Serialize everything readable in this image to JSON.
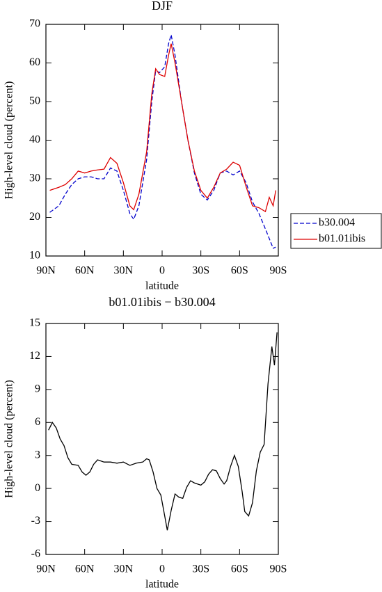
{
  "chart_data": [
    {
      "type": "line",
      "title": "DJF",
      "xlabel": "latitude",
      "ylabel": "High-level cloud (percent)",
      "x": [
        87,
        80,
        75,
        70,
        65,
        60,
        55,
        50,
        45,
        40,
        35,
        30,
        25,
        22,
        18,
        12,
        8,
        5,
        2,
        -2,
        -5,
        -7,
        -10,
        -15,
        -20,
        -25,
        -30,
        -35,
        -40,
        -45,
        -50,
        -55,
        -60,
        -65,
        -70,
        -75,
        -80,
        -83,
        -86,
        -88
      ],
      "series": [
        {
          "name": "b30.004",
          "color": "#0000cc",
          "style": "dashed",
          "values": [
            21.3,
            23,
            26,
            28.5,
            30,
            30.5,
            30.5,
            30,
            30,
            32.8,
            32,
            27,
            21,
            19.5,
            23,
            35,
            50,
            58,
            57.5,
            59,
            65,
            67.3,
            62,
            50,
            40,
            31.5,
            26,
            24.5,
            27,
            31.5,
            32,
            31,
            32,
            29,
            24,
            21,
            17,
            14.5,
            12,
            12.3
          ]
        },
        {
          "name": "b01.01ibis",
          "color": "#dd0000",
          "style": "solid",
          "values": [
            27,
            27.8,
            28.5,
            30,
            32,
            31.5,
            32,
            32.3,
            32.5,
            35.5,
            34,
            29,
            23,
            22,
            26,
            37,
            52,
            58.5,
            57,
            56.5,
            62,
            65,
            60,
            50,
            40,
            32,
            27,
            25,
            27.8,
            31.5,
            32.5,
            34.3,
            33.5,
            28,
            23,
            22.5,
            21.5,
            25.2,
            23,
            27
          ]
        }
      ],
      "xlim": [
        90,
        -90
      ],
      "xticks": [
        {
          "value": 90,
          "label": "90N"
        },
        {
          "value": 60,
          "label": "60N"
        },
        {
          "value": 30,
          "label": "30N"
        },
        0,
        {
          "value": -30,
          "label": "30S"
        },
        {
          "value": -60,
          "label": "60S"
        },
        {
          "value": -90,
          "label": "90S"
        }
      ],
      "ylim": [
        10,
        70
      ],
      "yticks": [
        10,
        20,
        30,
        40,
        50,
        60,
        70
      ],
      "legend": "right"
    },
    {
      "type": "line",
      "title": "b01.01ibis − b30.004",
      "xlabel": "latitude",
      "ylabel": "High-level cloud (percent)",
      "x": [
        88,
        85,
        82,
        79,
        76,
        73,
        70,
        65,
        62,
        59,
        56,
        53,
        50,
        45,
        40,
        35,
        30,
        25,
        20,
        15,
        12,
        10,
        7,
        4,
        1,
        -2,
        -4,
        -7,
        -10,
        -13,
        -16,
        -19,
        -22,
        -25,
        -30,
        -33,
        -36,
        -39,
        -42,
        -45,
        -48,
        -50,
        -53,
        -56,
        -59,
        -62,
        -64,
        -67,
        -70,
        -73,
        -76,
        -79,
        -82,
        -85,
        -87,
        -89
      ],
      "series": [
        {
          "color": "#000000",
          "style": "solid",
          "values": [
            5.3,
            6,
            5.5,
            4.5,
            3.9,
            2.8,
            2.2,
            2.1,
            1.5,
            1.2,
            1.5,
            2.2,
            2.6,
            2.4,
            2.4,
            2.3,
            2.4,
            2.1,
            2.3,
            2.4,
            2.7,
            2.6,
            1.5,
            0,
            -0.6,
            -2.5,
            -3.8,
            -2,
            -0.5,
            -0.8,
            -0.9,
            0.1,
            0.7,
            0.5,
            0.3,
            0.6,
            1.3,
            1.7,
            1.6,
            0.9,
            0.4,
            0.7,
            2,
            3,
            2,
            -0.3,
            -2.1,
            -2.5,
            -1.3,
            1.6,
            3.3,
            4,
            9.5,
            12.9,
            11.2,
            14.2
          ]
        }
      ],
      "xlim": [
        90,
        -90
      ],
      "xticks": [
        {
          "value": 90,
          "label": "90N"
        },
        {
          "value": 60,
          "label": "60N"
        },
        {
          "value": 30,
          "label": "30N"
        },
        0,
        {
          "value": -30,
          "label": "30S"
        },
        {
          "value": -60,
          "label": "60S"
        },
        {
          "value": -90,
          "label": "90S"
        }
      ],
      "ylim": [
        -6,
        15
      ],
      "yticks": [
        -6,
        -3,
        0,
        3,
        6,
        9,
        12,
        15
      ]
    }
  ]
}
